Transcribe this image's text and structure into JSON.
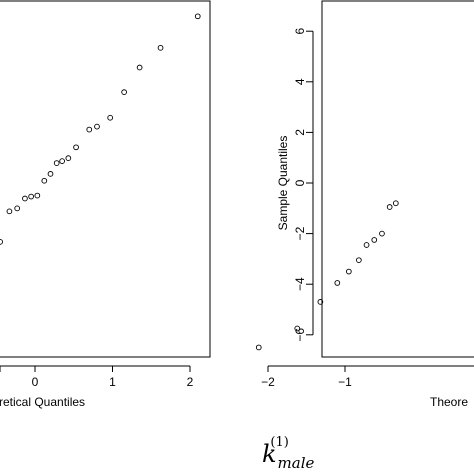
{
  "chart_data": [
    {
      "type": "scatter",
      "panel": "left",
      "title": "",
      "xlabel": "retical Quantiles",
      "ylabel": "",
      "x_ticks": [
        0,
        1,
        2
      ],
      "y_ticks": [],
      "grid": false,
      "points": [
        {
          "x": -0.45,
          "y": -0.45
        },
        {
          "x": -0.33,
          "y": 1.1
        },
        {
          "x": -0.23,
          "y": 1.25
        },
        {
          "x": -0.13,
          "y": 1.75
        },
        {
          "x": -0.05,
          "y": 1.85
        },
        {
          "x": 0.03,
          "y": 1.9
        },
        {
          "x": 0.12,
          "y": 2.65
        },
        {
          "x": 0.2,
          "y": 3.0
        },
        {
          "x": 0.28,
          "y": 3.55
        },
        {
          "x": 0.35,
          "y": 3.65
        },
        {
          "x": 0.43,
          "y": 3.8
        },
        {
          "x": 0.53,
          "y": 4.35
        },
        {
          "x": 0.7,
          "y": 5.25
        },
        {
          "x": 0.8,
          "y": 5.4
        },
        {
          "x": 0.97,
          "y": 5.85
        },
        {
          "x": 1.15,
          "y": 7.15
        },
        {
          "x": 1.35,
          "y": 8.4
        },
        {
          "x": 1.62,
          "y": 9.4
        },
        {
          "x": 2.1,
          "y": 11.0
        }
      ]
    },
    {
      "type": "scatter",
      "panel": "right",
      "title": "",
      "xlabel": "Theore",
      "ylabel": "Sample Quantiles",
      "x_ticks": [
        -2,
        -1
      ],
      "y_ticks": [
        6,
        4,
        2,
        0,
        -2,
        -4,
        -6
      ],
      "grid": false,
      "points": [
        {
          "x": -2.12,
          "y": -6.5
        },
        {
          "x": -1.62,
          "y": -5.75
        },
        {
          "x": -1.32,
          "y": -4.7
        },
        {
          "x": -1.1,
          "y": -3.95
        },
        {
          "x": -0.95,
          "y": -3.5
        },
        {
          "x": -0.82,
          "y": -3.05
        },
        {
          "x": -0.72,
          "y": -2.45
        },
        {
          "x": -0.62,
          "y": -2.25
        },
        {
          "x": -0.52,
          "y": -2.0
        },
        {
          "x": -0.42,
          "y": -0.95
        },
        {
          "x": -0.34,
          "y": -0.8
        }
      ]
    }
  ],
  "caption": {
    "symbol": "k",
    "subscript": "male",
    "superscript": "(1)"
  }
}
